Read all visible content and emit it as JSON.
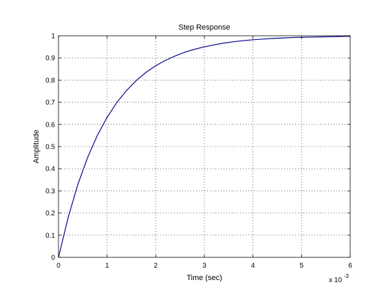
{
  "chart_data": {
    "type": "line",
    "title": "Step Response",
    "xlabel": "Time (sec)",
    "ylabel": "Amplitude",
    "x_scale_base": "x 10",
    "x_scale_exponent": "-3",
    "xlim": [
      0,
      6
    ],
    "ylim": [
      0,
      1
    ],
    "x_ticks": [
      "0",
      "1",
      "2",
      "3",
      "4",
      "5",
      "6"
    ],
    "y_ticks": [
      "0",
      "0.1",
      "0.2",
      "0.3",
      "0.4",
      "0.5",
      "0.6",
      "0.7",
      "0.8",
      "0.9",
      "1"
    ],
    "grid": true,
    "line_color": "#00008b",
    "series": [
      {
        "x": [
          0,
          0.2,
          0.4,
          0.6,
          0.8,
          1.0,
          1.2,
          1.4,
          1.6,
          1.8,
          2.0,
          2.2,
          2.4,
          2.6,
          2.8,
          3.0,
          3.2,
          3.4,
          3.6,
          3.8,
          4.0,
          4.2,
          4.4,
          4.6,
          4.8,
          5.0,
          5.2,
          5.4,
          5.6,
          5.8,
          6.0
        ],
        "y": [
          0,
          0.181,
          0.33,
          0.451,
          0.551,
          0.632,
          0.699,
          0.753,
          0.798,
          0.835,
          0.865,
          0.889,
          0.909,
          0.926,
          0.939,
          0.95,
          0.959,
          0.967,
          0.973,
          0.978,
          0.982,
          0.985,
          0.988,
          0.99,
          0.992,
          0.993,
          0.994,
          0.995,
          0.996,
          0.997,
          0.998
        ]
      }
    ]
  }
}
